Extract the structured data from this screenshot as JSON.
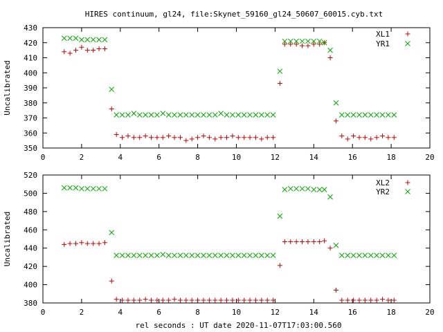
{
  "title": "HIRES continuum, gl24, file:Skynet_59160_gl24_50607_60015.cyb.txt",
  "colors": {
    "series1": "#cc0000",
    "series2": "#00aa00",
    "frame": "#000000"
  },
  "chart_data": [
    {
      "type": "scatter",
      "title": "HIRES continuum, gl24, file:Skynet_59160_gl24_50607_60015.cyb.txt",
      "xlabel": "",
      "ylabel": "Uncalibrated",
      "xlim": [
        0,
        20
      ],
      "ylim": [
        350,
        430
      ],
      "xticks": [
        0,
        2,
        4,
        6,
        8,
        10,
        12,
        14,
        16,
        18,
        20
      ],
      "yticks": [
        350,
        360,
        370,
        380,
        390,
        400,
        410,
        420,
        430
      ],
      "legend_position": "top-right",
      "grid": false,
      "series": [
        {
          "name": "XL1",
          "marker": "plus",
          "color": "#cc0000",
          "x": [
            1.1,
            1.4,
            1.7,
            2.0,
            2.3,
            2.6,
            2.9,
            3.2,
            3.55,
            3.8,
            4.1,
            4.4,
            4.7,
            5.0,
            5.3,
            5.6,
            5.9,
            6.2,
            6.5,
            6.8,
            7.1,
            7.4,
            7.7,
            8.0,
            8.3,
            8.6,
            8.9,
            9.2,
            9.5,
            9.8,
            10.1,
            10.4,
            10.7,
            11.0,
            11.3,
            11.6,
            11.9,
            12.25,
            12.5,
            12.8,
            13.1,
            13.4,
            13.7,
            14.0,
            14.3,
            14.55,
            14.85,
            15.15,
            15.45,
            15.75,
            16.05,
            16.35,
            16.65,
            16.95,
            17.25,
            17.55,
            17.85,
            18.15
          ],
          "y": [
            414,
            413,
            415,
            417,
            415,
            415,
            416,
            416,
            376,
            359,
            357,
            358,
            357,
            357,
            358,
            357,
            357,
            357,
            358,
            357,
            357,
            355,
            356,
            357,
            358,
            357,
            356,
            357,
            357,
            358,
            357,
            357,
            357,
            357,
            356,
            357,
            357,
            393,
            419,
            419,
            419,
            418,
            418,
            419,
            419,
            420,
            410,
            368,
            358,
            356,
            358,
            357,
            357,
            356,
            357,
            358,
            357,
            357
          ]
        },
        {
          "name": "YR1",
          "marker": "cross",
          "color": "#00aa00",
          "x": [
            1.1,
            1.4,
            1.7,
            2.0,
            2.3,
            2.6,
            2.9,
            3.2,
            3.55,
            3.8,
            4.1,
            4.4,
            4.7,
            5.0,
            5.3,
            5.6,
            5.9,
            6.2,
            6.5,
            6.8,
            7.1,
            7.4,
            7.7,
            8.0,
            8.3,
            8.6,
            8.9,
            9.2,
            9.5,
            9.8,
            10.1,
            10.4,
            10.7,
            11.0,
            11.3,
            11.6,
            11.9,
            12.25,
            12.5,
            12.8,
            13.1,
            13.4,
            13.7,
            14.0,
            14.3,
            14.55,
            14.85,
            15.15,
            15.45,
            15.75,
            16.05,
            16.35,
            16.65,
            16.95,
            17.25,
            17.55,
            17.85,
            18.15
          ],
          "y": [
            423,
            423,
            423,
            422,
            422,
            422,
            422,
            422,
            389,
            372,
            372,
            372,
            373,
            372,
            372,
            372,
            372,
            373,
            372,
            372,
            372,
            372,
            372,
            372,
            372,
            372,
            372,
            373,
            372,
            372,
            372,
            372,
            372,
            372,
            372,
            372,
            372,
            401,
            421,
            421,
            421,
            421,
            421,
            421,
            421,
            420,
            415,
            380,
            372,
            372,
            372,
            372,
            372,
            372,
            372,
            372,
            372,
            372
          ]
        }
      ]
    },
    {
      "type": "scatter",
      "xlabel": "rel seconds : UT date 2020-11-07T17:03:00.560",
      "ylabel": "Uncalibrated",
      "xlim": [
        0,
        20
      ],
      "ylim": [
        380,
        520
      ],
      "xticks": [
        0,
        2,
        4,
        6,
        8,
        10,
        12,
        14,
        16,
        18,
        20
      ],
      "yticks": [
        380,
        400,
        420,
        440,
        460,
        480,
        500,
        520
      ],
      "legend_position": "top-right",
      "grid": false,
      "series": [
        {
          "name": "XL2",
          "marker": "plus",
          "color": "#cc0000",
          "x": [
            1.1,
            1.4,
            1.7,
            2.0,
            2.3,
            2.6,
            2.9,
            3.2,
            3.55,
            3.8,
            4.1,
            4.4,
            4.7,
            5.0,
            5.3,
            5.6,
            5.9,
            6.2,
            6.5,
            6.8,
            7.1,
            7.4,
            7.7,
            8.0,
            8.3,
            8.6,
            8.9,
            9.2,
            9.5,
            9.8,
            10.1,
            10.4,
            10.7,
            11.0,
            11.3,
            11.6,
            11.9,
            12.25,
            12.5,
            12.8,
            13.1,
            13.4,
            13.7,
            14.0,
            14.3,
            14.55,
            14.85,
            15.15,
            15.45,
            15.75,
            16.05,
            16.35,
            16.65,
            16.95,
            17.25,
            17.55,
            17.85,
            18.15
          ],
          "y": [
            444,
            445,
            445,
            446,
            445,
            445,
            445,
            446,
            404,
            384,
            383,
            383,
            383,
            383,
            384,
            383,
            383,
            383,
            383,
            384,
            383,
            383,
            383,
            383,
            383,
            383,
            383,
            383,
            383,
            383,
            383,
            383,
            383,
            383,
            383,
            383,
            383,
            421,
            447,
            447,
            447,
            447,
            447,
            447,
            447,
            448,
            440,
            394,
            383,
            383,
            383,
            383,
            383,
            383,
            383,
            384,
            383,
            383
          ]
        },
        {
          "name": "YR2",
          "marker": "cross",
          "color": "#00aa00",
          "x": [
            1.1,
            1.4,
            1.7,
            2.0,
            2.3,
            2.6,
            2.9,
            3.2,
            3.55,
            3.8,
            4.1,
            4.4,
            4.7,
            5.0,
            5.3,
            5.6,
            5.9,
            6.2,
            6.5,
            6.8,
            7.1,
            7.4,
            7.7,
            8.0,
            8.3,
            8.6,
            8.9,
            9.2,
            9.5,
            9.8,
            10.1,
            10.4,
            10.7,
            11.0,
            11.3,
            11.6,
            11.9,
            12.25,
            12.5,
            12.8,
            13.1,
            13.4,
            13.7,
            14.0,
            14.3,
            14.55,
            14.85,
            15.15,
            15.45,
            15.75,
            16.05,
            16.35,
            16.65,
            16.95,
            17.25,
            17.55,
            17.85,
            18.15
          ],
          "y": [
            506,
            506,
            506,
            505,
            505,
            505,
            505,
            505,
            457,
            432,
            432,
            432,
            432,
            432,
            432,
            432,
            432,
            433,
            432,
            432,
            432,
            432,
            432,
            432,
            432,
            432,
            432,
            432,
            432,
            432,
            432,
            432,
            432,
            432,
            432,
            432,
            432,
            475,
            504,
            505,
            505,
            505,
            505,
            504,
            504,
            504,
            496,
            443,
            432,
            432,
            432,
            432,
            432,
            432,
            432,
            432,
            432,
            432
          ]
        }
      ]
    }
  ]
}
